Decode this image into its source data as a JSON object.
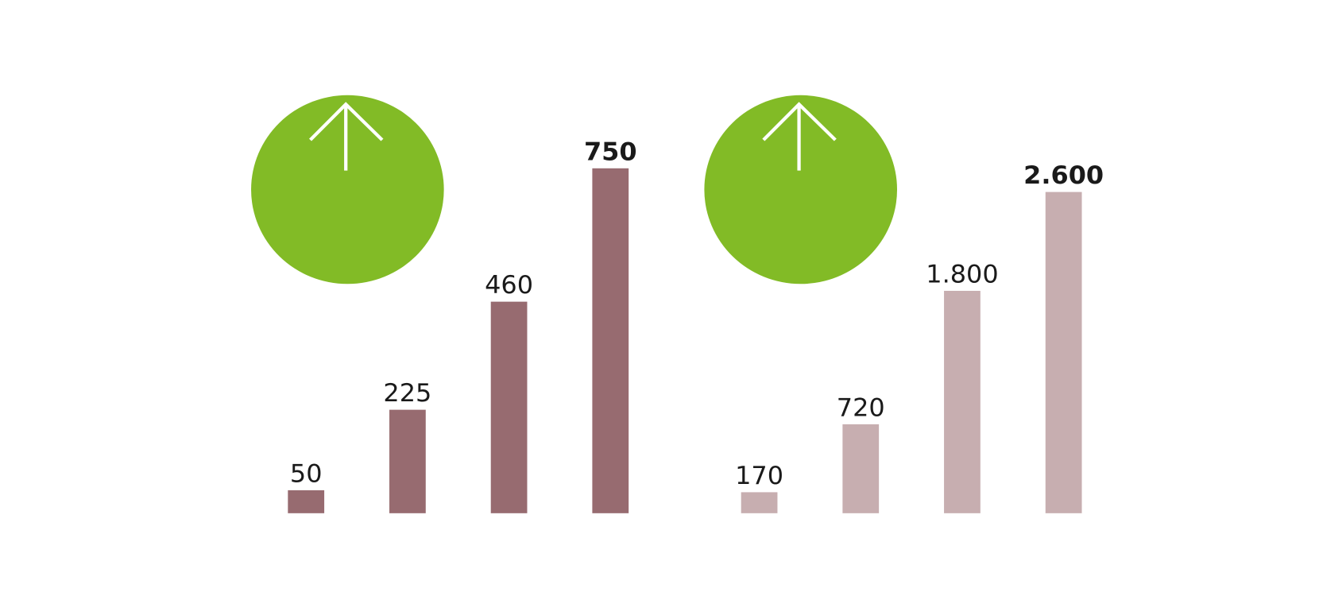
{
  "chart_data": [
    {
      "type": "bar",
      "values": [
        50,
        225,
        460,
        750
      ],
      "value_labels": [
        "50",
        "225",
        "460",
        "750"
      ],
      "color": "#976b70",
      "ylim": [
        0,
        900
      ]
    },
    {
      "type": "bar",
      "values": [
        170,
        720,
        1800,
        2600
      ],
      "value_labels": [
        "170",
        "720",
        "1.800",
        "2.600"
      ],
      "color": "#c7aeb0",
      "ylim": [
        0,
        3350
      ]
    }
  ]
}
